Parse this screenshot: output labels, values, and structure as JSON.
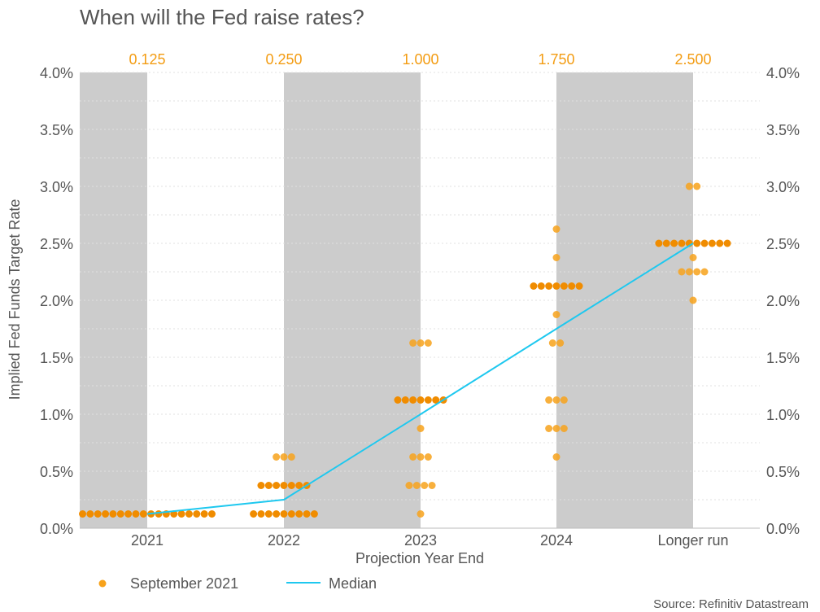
{
  "title": "When will the Fed raise rates?",
  "source": "Source: Refinitiv Datastream",
  "colors": {
    "dot": "#f7a21b",
    "dot_dark": "#f08c00",
    "median": "#1ec8ef",
    "shade": "#cccccc",
    "text": "#555555",
    "median_label": "#f39c12"
  },
  "chart_data": {
    "type": "scatter",
    "title": "When will the Fed raise rates?",
    "xlabel": "Projection Year End",
    "ylabel": "Implied Fed Funds Target Rate",
    "categories": [
      "2021",
      "2022",
      "2023",
      "2024",
      "Longer run"
    ],
    "median_labels": [
      "0.125",
      "0.250",
      "1.000",
      "1.750",
      "2.500"
    ],
    "ylim": [
      0,
      4
    ],
    "yticks": [
      "0.0%",
      "0.5%",
      "1.0%",
      "1.5%",
      "2.0%",
      "2.5%",
      "3.0%",
      "3.5%",
      "4.0%"
    ],
    "legend": [
      "September 2021",
      "Median"
    ],
    "median": [
      0.125,
      0.25,
      1.0,
      1.75,
      2.5
    ],
    "dots": [
      [
        {
          "rate": 0.125,
          "count": 18
        }
      ],
      [
        {
          "rate": 0.625,
          "count": 3
        },
        {
          "rate": 0.375,
          "count": 7
        },
        {
          "rate": 0.125,
          "count": 9
        }
      ],
      [
        {
          "rate": 1.625,
          "count": 3
        },
        {
          "rate": 1.125,
          "count": 7
        },
        {
          "rate": 0.875,
          "count": 1
        },
        {
          "rate": 0.625,
          "count": 3
        },
        {
          "rate": 0.375,
          "count": 4
        },
        {
          "rate": 0.125,
          "count": 1
        }
      ],
      [
        {
          "rate": 2.625,
          "count": 1
        },
        {
          "rate": 2.375,
          "count": 1
        },
        {
          "rate": 2.125,
          "count": 7
        },
        {
          "rate": 1.875,
          "count": 1
        },
        {
          "rate": 1.625,
          "count": 2
        },
        {
          "rate": 1.125,
          "count": 3
        },
        {
          "rate": 0.875,
          "count": 3
        },
        {
          "rate": 0.625,
          "count": 1
        }
      ],
      [
        {
          "rate": 3.0,
          "count": 2
        },
        {
          "rate": 2.5,
          "count": 10
        },
        {
          "rate": 2.375,
          "count": 1
        },
        {
          "rate": 2.25,
          "count": 4
        },
        {
          "rate": 2.0,
          "count": 1
        }
      ]
    ]
  }
}
